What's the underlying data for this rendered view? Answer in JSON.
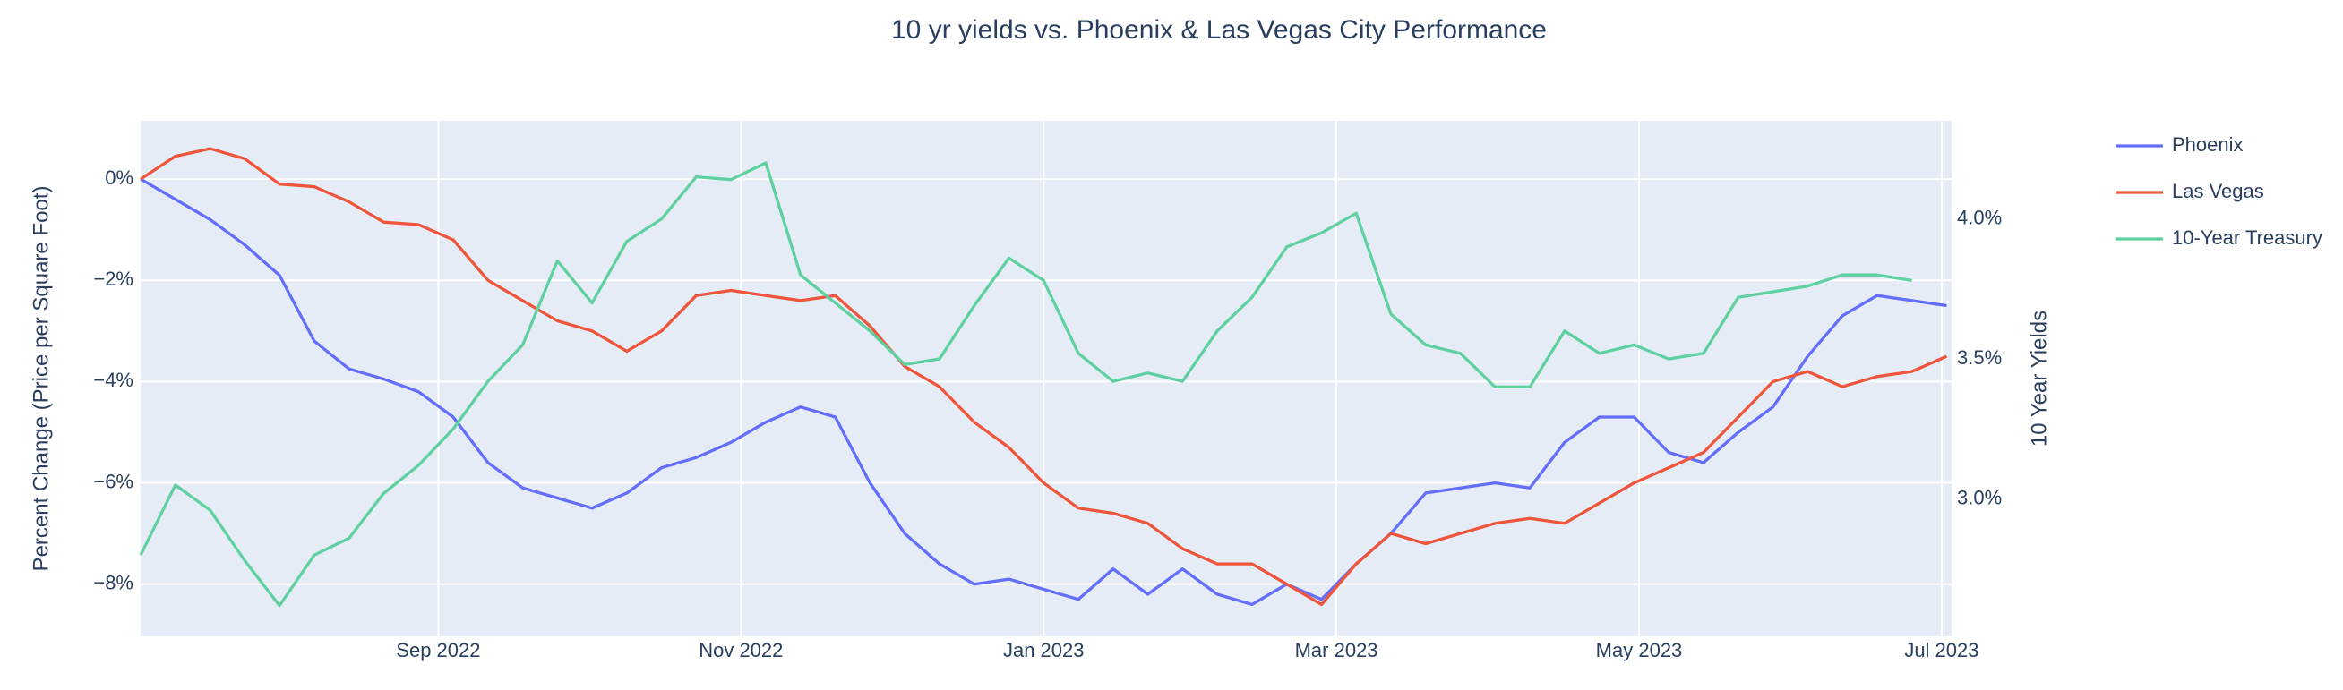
{
  "chart_data": {
    "type": "line",
    "title": "10 yr yields vs. Phoenix & Las Vegas City Performance",
    "y_label": "Percent Change (Price per Square Foot)",
    "y2_label": "10 Year Yields",
    "x": [
      "2022-07-03",
      "2022-07-10",
      "2022-07-17",
      "2022-07-24",
      "2022-07-31",
      "2022-08-07",
      "2022-08-14",
      "2022-08-21",
      "2022-08-28",
      "2022-09-04",
      "2022-09-11",
      "2022-09-18",
      "2022-09-25",
      "2022-10-02",
      "2022-10-09",
      "2022-10-16",
      "2022-10-23",
      "2022-10-30",
      "2022-11-06",
      "2022-11-13",
      "2022-11-20",
      "2022-11-27",
      "2022-12-04",
      "2022-12-11",
      "2022-12-18",
      "2022-12-25",
      "2023-01-01",
      "2023-01-08",
      "2023-01-15",
      "2023-01-22",
      "2023-01-29",
      "2023-02-05",
      "2023-02-12",
      "2023-02-19",
      "2023-02-26",
      "2023-03-05",
      "2023-03-12",
      "2023-03-19",
      "2023-03-26",
      "2023-04-02",
      "2023-04-09",
      "2023-04-16",
      "2023-04-23",
      "2023-04-30",
      "2023-05-07",
      "2023-05-14",
      "2023-05-21",
      "2023-05-28",
      "2023-06-04",
      "2023-06-11",
      "2023-06-18",
      "2023-06-25",
      "2023-07-02"
    ],
    "xlim": [
      "2022-07-03",
      "2023-07-03"
    ],
    "xticks": [
      {
        "value": "2022-09-01",
        "label": "Sep 2022"
      },
      {
        "value": "2022-11-01",
        "label": "Nov 2022"
      },
      {
        "value": "2023-01-01",
        "label": "Jan 2023"
      },
      {
        "value": "2023-03-01",
        "label": "Mar 2023"
      },
      {
        "value": "2023-05-01",
        "label": "May 2023"
      },
      {
        "value": "2023-07-01",
        "label": "Jul 2023"
      }
    ],
    "ylim": [
      -9.03,
      1.15
    ],
    "yticks": [
      {
        "value": 0,
        "label": "0%"
      },
      {
        "value": -2,
        "label": "−2%"
      },
      {
        "value": -4,
        "label": "−4%"
      },
      {
        "value": -6,
        "label": "−6%"
      },
      {
        "value": -8,
        "label": "−8%"
      }
    ],
    "y2lim": [
      2.51,
      4.35
    ],
    "y2ticks": [
      {
        "value": 3.0,
        "label": "3.0%"
      },
      {
        "value": 3.5,
        "label": "3.5%"
      },
      {
        "value": 4.0,
        "label": "4.0%"
      }
    ],
    "grid": true,
    "legend": "right",
    "series": [
      {
        "name": "Phoenix",
        "color": "#636efa",
        "values": [
          0,
          -0.4,
          -0.8,
          -1.3,
          -1.9,
          -3.2,
          -3.75,
          -3.95,
          -4.2,
          -4.7,
          -5.6,
          -6.1,
          -6.3,
          -6.5,
          -6.2,
          -5.7,
          -5.5,
          -5.2,
          -4.8,
          -4.5,
          -4.7,
          -6.0,
          -7.0,
          -7.6,
          -8.0,
          -7.9,
          -8.1,
          -8.3,
          -7.7,
          -8.2,
          -7.7,
          -8.2,
          -8.4,
          -8.0,
          -8.3,
          -7.6,
          -7.0,
          -6.2,
          -6.1,
          -6.0,
          -6.1,
          -5.2,
          -4.7,
          -4.7,
          -5.4,
          -5.6,
          -5.0,
          -4.5,
          -3.5,
          -2.7,
          -2.3,
          -2.4,
          -2.5
        ]
      },
      {
        "name": "Las Vegas",
        "color": "#ef553b",
        "values": [
          0,
          0.45,
          0.6,
          0.4,
          -0.1,
          -0.15,
          -0.45,
          -0.85,
          -0.9,
          -1.2,
          -2.0,
          -2.4,
          -2.8,
          -3.0,
          -3.4,
          -3.0,
          -2.3,
          -2.2,
          -2.3,
          -2.4,
          -2.3,
          -2.9,
          -3.7,
          -4.1,
          -4.8,
          -5.3,
          -6.0,
          -6.5,
          -6.6,
          -6.8,
          -7.3,
          -7.6,
          -7.6,
          -8.0,
          -8.4,
          -7.6,
          -7.0,
          -7.2,
          -7.0,
          -6.8,
          -6.7,
          -6.8,
          -6.4,
          -6.0,
          -5.7,
          -5.4,
          -4.7,
          -4.0,
          -3.8,
          -4.1,
          -3.9,
          -3.8,
          -3.5
        ]
      },
      {
        "name": "10-Year Treasury",
        "color": "#5fd0a0",
        "axis": "y2",
        "values": [
          2.8,
          3.05,
          2.96,
          2.78,
          2.62,
          2.8,
          2.86,
          3.02,
          3.12,
          3.25,
          3.42,
          3.55,
          3.85,
          3.7,
          3.92,
          4.0,
          4.15,
          4.14,
          4.2,
          3.8,
          3.7,
          3.6,
          3.48,
          3.5,
          3.69,
          3.86,
          3.78,
          3.52,
          3.42,
          3.45,
          3.42,
          3.6,
          3.72,
          3.9,
          3.95,
          4.02,
          3.66,
          3.55,
          3.52,
          3.4,
          3.4,
          3.6,
          3.52,
          3.55,
          3.5,
          3.52,
          3.72,
          3.74,
          3.76,
          3.8,
          3.8,
          3.78,
          null
        ]
      }
    ]
  }
}
